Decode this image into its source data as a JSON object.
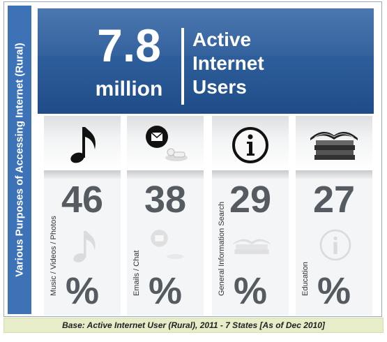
{
  "side_label": "Various Purposes of Accessing Internet (Rural)",
  "header": {
    "number": "7.8",
    "unit": "million",
    "title_lines": [
      "Active",
      "Internet",
      "Users"
    ]
  },
  "categories": [
    {
      "label": "Music / Videos / Photos",
      "value": "46",
      "percent_sign": "%",
      "icon": "music-note-icon"
    },
    {
      "label": "Emails / Chat",
      "value": "38",
      "percent_sign": "%",
      "icon": "email-chat-icon"
    },
    {
      "label": "General Information Search",
      "value": "29",
      "percent_sign": "%",
      "icon": "info-icon"
    },
    {
      "label": "Education",
      "value": "27",
      "percent_sign": "%",
      "icon": "books-icon"
    }
  ],
  "footer": "Base: Active Internet User (Rural), 2011 - 7 States [As of Dec 2010]",
  "colors": {
    "side_band": "#3d73b6",
    "header": "#2b5b98",
    "number_text": "#555b60",
    "footer_bg": "#e7ecc9"
  }
}
